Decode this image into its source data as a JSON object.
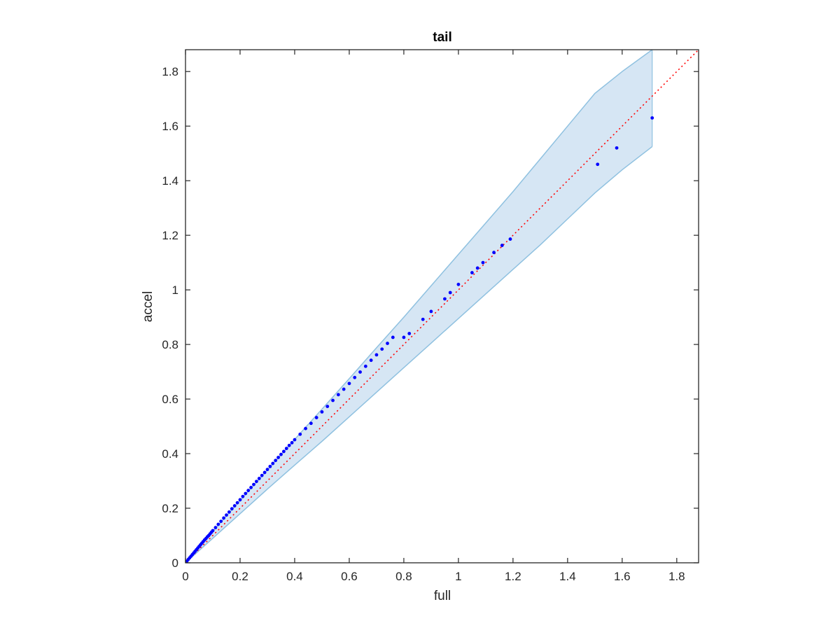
{
  "chart_data": {
    "type": "scatter",
    "title": "tail",
    "xlabel": "full",
    "ylabel": "accel",
    "xlim": [
      0,
      1.88
    ],
    "ylim": [
      0,
      1.88
    ],
    "xticks": [
      "0",
      "0.2",
      "0.4",
      "0.6",
      "0.8",
      "1",
      "1.2",
      "1.4",
      "1.6",
      "1.8"
    ],
    "yticks": [
      "0",
      "0.2",
      "0.4",
      "0.6",
      "0.8",
      "1",
      "1.2",
      "1.4",
      "1.6",
      "1.8"
    ],
    "grid": false,
    "reference_line": {
      "style": "dotted",
      "color": "#ff0000",
      "from": [
        0,
        0
      ],
      "to": [
        1.88,
        1.88
      ]
    },
    "band": {
      "color": "#d6e6f4",
      "edge_color": "#8fc1e0",
      "x": [
        0,
        0.05,
        0.1,
        0.2,
        0.3,
        0.4,
        0.5,
        0.6,
        0.7,
        0.8,
        0.9,
        1.0,
        1.1,
        1.2,
        1.3,
        1.4,
        1.5,
        1.6,
        1.71
      ],
      "upper": [
        0,
        0.058,
        0.115,
        0.228,
        0.34,
        0.452,
        0.563,
        0.675,
        0.788,
        0.9,
        1.015,
        1.13,
        1.245,
        1.36,
        1.48,
        1.6,
        1.72,
        1.8,
        1.88
      ],
      "lower": [
        0,
        0.045,
        0.09,
        0.18,
        0.27,
        0.358,
        0.445,
        0.535,
        0.625,
        0.715,
        0.805,
        0.895,
        0.985,
        1.075,
        1.165,
        1.26,
        1.355,
        1.44,
        1.525
      ]
    },
    "series": [
      {
        "color": "#0000ff",
        "points": [
          [
            0.005,
            0.006
          ],
          [
            0.01,
            0.012
          ],
          [
            0.015,
            0.018
          ],
          [
            0.02,
            0.024
          ],
          [
            0.025,
            0.03
          ],
          [
            0.03,
            0.036
          ],
          [
            0.035,
            0.042
          ],
          [
            0.04,
            0.048
          ],
          [
            0.045,
            0.054
          ],
          [
            0.05,
            0.06
          ],
          [
            0.055,
            0.066
          ],
          [
            0.06,
            0.072
          ],
          [
            0.065,
            0.078
          ],
          [
            0.07,
            0.084
          ],
          [
            0.075,
            0.089
          ],
          [
            0.08,
            0.095
          ],
          [
            0.085,
            0.1
          ],
          [
            0.09,
            0.106
          ],
          [
            0.095,
            0.112
          ],
          [
            0.1,
            0.118
          ],
          [
            0.11,
            0.129
          ],
          [
            0.12,
            0.141
          ],
          [
            0.13,
            0.152
          ],
          [
            0.14,
            0.164
          ],
          [
            0.15,
            0.175
          ],
          [
            0.16,
            0.186
          ],
          [
            0.17,
            0.198
          ],
          [
            0.18,
            0.209
          ],
          [
            0.19,
            0.22
          ],
          [
            0.2,
            0.231
          ],
          [
            0.21,
            0.243
          ],
          [
            0.22,
            0.254
          ],
          [
            0.23,
            0.265
          ],
          [
            0.24,
            0.276
          ],
          [
            0.25,
            0.287
          ],
          [
            0.26,
            0.298
          ],
          [
            0.27,
            0.309
          ],
          [
            0.28,
            0.32
          ],
          [
            0.29,
            0.331
          ],
          [
            0.3,
            0.342
          ],
          [
            0.31,
            0.353
          ],
          [
            0.32,
            0.364
          ],
          [
            0.33,
            0.375
          ],
          [
            0.34,
            0.386
          ],
          [
            0.35,
            0.397
          ],
          [
            0.36,
            0.408
          ],
          [
            0.37,
            0.419
          ],
          [
            0.38,
            0.43
          ],
          [
            0.39,
            0.44
          ],
          [
            0.4,
            0.451
          ],
          [
            0.42,
            0.471
          ],
          [
            0.44,
            0.492
          ],
          [
            0.46,
            0.511
          ],
          [
            0.48,
            0.532
          ],
          [
            0.5,
            0.553
          ],
          [
            0.52,
            0.573
          ],
          [
            0.54,
            0.595
          ],
          [
            0.56,
            0.616
          ],
          [
            0.58,
            0.636
          ],
          [
            0.6,
            0.657
          ],
          [
            0.62,
            0.679
          ],
          [
            0.64,
            0.699
          ],
          [
            0.66,
            0.72
          ],
          [
            0.68,
            0.742
          ],
          [
            0.7,
            0.762
          ],
          [
            0.72,
            0.783
          ],
          [
            0.74,
            0.804
          ],
          [
            0.76,
            0.826
          ],
          [
            0.8,
            0.826
          ],
          [
            0.82,
            0.84
          ],
          [
            0.87,
            0.892
          ],
          [
            0.9,
            0.921
          ],
          [
            0.95,
            0.967
          ],
          [
            0.97,
            0.99
          ],
          [
            1.0,
            1.02
          ],
          [
            1.05,
            1.063
          ],
          [
            1.07,
            1.08
          ],
          [
            1.09,
            1.1
          ],
          [
            1.13,
            1.137
          ],
          [
            1.16,
            1.163
          ],
          [
            1.19,
            1.186
          ],
          [
            1.51,
            1.46
          ],
          [
            1.58,
            1.52
          ],
          [
            1.71,
            1.63
          ]
        ]
      }
    ]
  }
}
